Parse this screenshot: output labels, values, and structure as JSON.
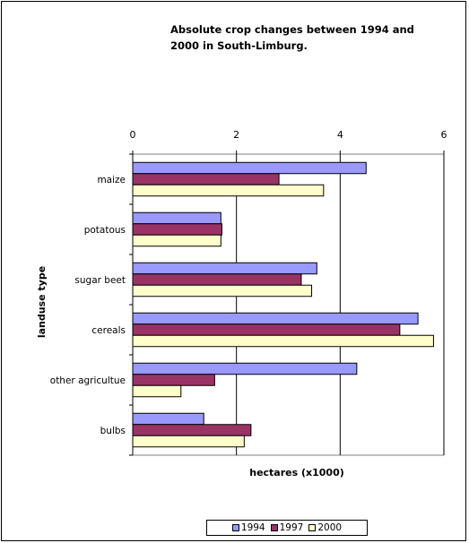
{
  "chart_data": {
    "type": "bar",
    "orientation": "horizontal",
    "title": "Absolute crop changes between 1994 and\n2000 in South-Limburg.",
    "xlabel": "hectares (x1000)",
    "ylabel": "landuse type",
    "categories": [
      "maize",
      "potatous",
      "sugar beet",
      "cereals",
      "other agricultue",
      "bulbs"
    ],
    "series": [
      {
        "name": "1994",
        "color": "#9999ff",
        "values": [
          4.5,
          1.7,
          3.55,
          5.5,
          4.32,
          1.37
        ]
      },
      {
        "name": "1997",
        "color": "#993366",
        "values": [
          2.82,
          1.72,
          3.25,
          5.15,
          1.58,
          2.28
        ]
      },
      {
        "name": "2000",
        "color": "#ffffcc",
        "values": [
          3.68,
          1.7,
          3.45,
          5.8,
          0.93,
          2.15
        ]
      }
    ],
    "xlim": [
      0,
      6
    ],
    "xticks": [
      "0",
      "2",
      "4",
      "6"
    ],
    "grid": true,
    "legend_position": "bottom"
  }
}
